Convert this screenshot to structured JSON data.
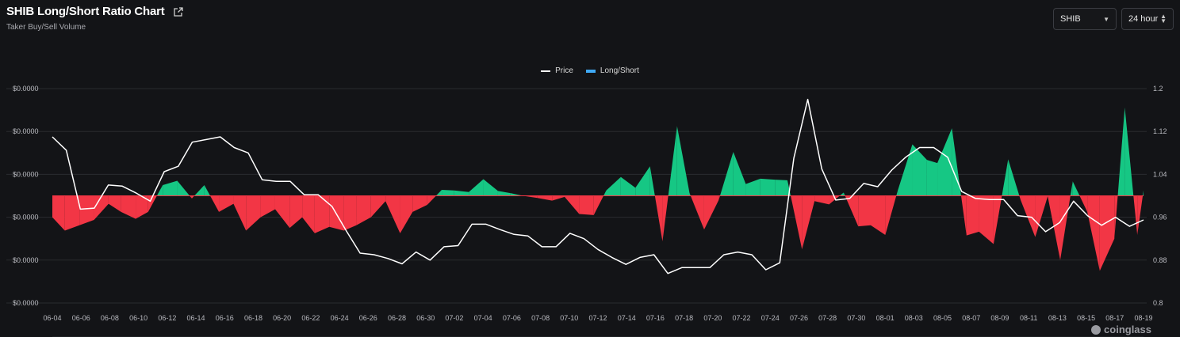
{
  "header": {
    "title": "SHIB Long/Short Ratio Chart",
    "subtitle": "Taker Buy/Sell Volume"
  },
  "controls": {
    "coin": "SHIB",
    "period": "24 hour"
  },
  "legend": {
    "price": "Price",
    "ratio": "Long/Short"
  },
  "watermark": "coinglass",
  "colors": {
    "long": "#16c784",
    "short": "#f23645",
    "price": "#ffffff",
    "grid": "#2a2b2f",
    "ratio_legend": "#3fa9f5"
  },
  "chart_data": {
    "type": "area",
    "x_tick_labels": [
      "06-04",
      "06-06",
      "06-08",
      "06-10",
      "06-12",
      "06-14",
      "06-16",
      "06-18",
      "06-20",
      "06-22",
      "06-24",
      "06-26",
      "06-28",
      "06-30",
      "07-02",
      "07-04",
      "07-06",
      "07-08",
      "07-10",
      "07-12",
      "07-14",
      "07-16",
      "07-18",
      "07-20",
      "07-22",
      "07-24",
      "07-26",
      "07-28",
      "07-30",
      "08-01",
      "08-03",
      "08-05",
      "08-07",
      "08-09",
      "08-11",
      "08-13",
      "08-15",
      "08-17",
      "08-19"
    ],
    "left_axis_labels": [
      "$0.0000",
      "$0.0000",
      "$0.0000",
      "$0.0000",
      "$0.0000",
      "$0.0000"
    ],
    "right_axis": {
      "ticks": [
        0.8,
        0.88,
        0.96,
        1.04,
        1.12,
        1.2
      ],
      "min": 0.8,
      "max": 1.2
    },
    "baseline": 1.0,
    "series": [
      {
        "name": "Long/Short",
        "axis": "right",
        "values": [
          0.96,
          0.935,
          0.945,
          0.955,
          0.985,
          0.97,
          0.957,
          0.97,
          1.02,
          1.028,
          0.995,
          1.02,
          0.97,
          0.985,
          0.935,
          0.96,
          0.975,
          0.94,
          0.96,
          0.93,
          0.942,
          0.935,
          0.945,
          0.96,
          0.99,
          0.93,
          0.97,
          0.983,
          1.011,
          1.01,
          1.007,
          1.031,
          1.009,
          1.005,
          1.0,
          0.996,
          0.991,
          0.998,
          0.966,
          0.964,
          1.01,
          1.035,
          1.015,
          1.055,
          0.915,
          1.13,
          1.005,
          0.937,
          0.992,
          1.082,
          1.022,
          1.032,
          1.03,
          1.029,
          0.9,
          0.99,
          0.984,
          1.006,
          0.943,
          0.945,
          0.927,
          1.01,
          1.096,
          1.067,
          1.061,
          1.126,
          0.926,
          0.933,
          0.91,
          1.068,
          0.992,
          0.923,
          0.999,
          0.88,
          1.027,
          0.97,
          0.86,
          0.92,
          1.165,
          0.927,
          1.01
        ],
        "x_index": [
          0,
          0.6,
          1.3,
          2,
          2.7,
          3.3,
          4,
          4.6,
          5.3,
          6,
          6.7,
          7.3,
          8,
          8.7,
          9.3,
          10,
          10.7,
          11.4,
          12,
          12.6,
          13.3,
          14,
          14.6,
          15.3,
          16,
          16.7,
          17.3,
          18,
          18.7,
          19.3,
          20,
          20.7,
          21.4,
          22,
          22.6,
          23.3,
          24,
          24.6,
          25.3,
          26,
          26.6,
          27.3,
          28,
          28.7,
          29.3,
          30,
          30.6,
          31.3,
          32,
          32.7,
          33.3,
          34,
          34.7,
          35.3,
          36,
          36.6,
          37.3,
          38,
          38.7,
          39.3,
          40,
          40.6,
          41.3,
          42,
          42.5,
          43.2,
          43.9,
          44.5,
          45.2,
          45.9,
          46.5,
          47.2,
          47.8,
          48.4,
          49,
          49.7,
          50.3,
          51,
          51.5,
          52.1,
          52.4
        ]
      },
      {
        "name": "Price",
        "axis": "right",
        "values": [
          1.11,
          1.085,
          0.975,
          0.977,
          1.02,
          1.018,
          1.005,
          0.99,
          1.045,
          1.055,
          1.1,
          1.105,
          1.11,
          1.09,
          1.08,
          1.03,
          1.027,
          1.027,
          1.002,
          1.002,
          0.98,
          0.935,
          0.893,
          0.89,
          0.883,
          0.873,
          0.895,
          0.88,
          0.905,
          0.907,
          0.947,
          0.947,
          0.937,
          0.928,
          0.925,
          0.905,
          0.905,
          0.93,
          0.92,
          0.9,
          0.885,
          0.872,
          0.885,
          0.89,
          0.855,
          0.866,
          0.866,
          0.866,
          0.89,
          0.895,
          0.89,
          0.862,
          0.875,
          1.07,
          1.18,
          1.05,
          0.992,
          0.995,
          1.023,
          1.017,
          1.048,
          1.072,
          1.09,
          1.09,
          1.072,
          1.008,
          0.995,
          0.993,
          0.993,
          0.963,
          0.96,
          0.933,
          0.95,
          0.99,
          0.963,
          0.945,
          0.96,
          0.943,
          0.955
        ]
      }
    ]
  }
}
